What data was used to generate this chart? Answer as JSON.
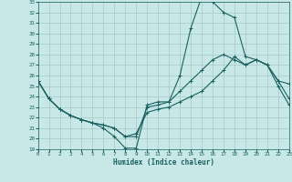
{
  "xlabel": "Humidex (Indice chaleur)",
  "background_color": "#c8e8e8",
  "grid_color": "#a8c8c8",
  "line_color": "#1a6060",
  "xlim": [
    0,
    23
  ],
  "ylim": [
    19,
    33
  ],
  "xticks": [
    0,
    1,
    2,
    3,
    4,
    5,
    6,
    7,
    8,
    9,
    10,
    11,
    12,
    13,
    14,
    15,
    16,
    17,
    18,
    19,
    20,
    21,
    22,
    23
  ],
  "yticks": [
    19,
    20,
    21,
    22,
    23,
    24,
    25,
    26,
    27,
    28,
    29,
    30,
    31,
    32,
    33
  ],
  "curve1_x": [
    0,
    1,
    2,
    3,
    4,
    5,
    6,
    7,
    8,
    9,
    10,
    11,
    12,
    13,
    14,
    15,
    16,
    17,
    18,
    19,
    20,
    21,
    22,
    23
  ],
  "curve1_y": [
    25.5,
    23.8,
    22.8,
    22.2,
    21.8,
    21.5,
    21.0,
    20.2,
    19.1,
    19.1,
    23.2,
    23.5,
    23.5,
    26.0,
    30.5,
    33.5,
    33.0,
    32.0,
    31.5,
    27.8,
    27.5,
    27.0,
    25.0,
    23.2
  ],
  "curve2_x": [
    0,
    1,
    2,
    3,
    4,
    5,
    6,
    7,
    8,
    9,
    10,
    11,
    12,
    13,
    14,
    15,
    16,
    17,
    18,
    19,
    20,
    21,
    22,
    23
  ],
  "curve2_y": [
    25.5,
    23.8,
    22.8,
    22.2,
    21.8,
    21.5,
    21.3,
    21.0,
    20.2,
    20.2,
    23.0,
    23.2,
    23.5,
    24.5,
    25.5,
    26.5,
    27.5,
    28.0,
    27.5,
    27.0,
    27.5,
    27.0,
    25.5,
    25.2
  ],
  "curve3_x": [
    0,
    1,
    2,
    3,
    4,
    5,
    6,
    7,
    8,
    9,
    10,
    11,
    12,
    13,
    14,
    15,
    16,
    17,
    18,
    19,
    20,
    21,
    22,
    23
  ],
  "curve3_y": [
    25.5,
    23.8,
    22.8,
    22.2,
    21.8,
    21.5,
    21.3,
    21.0,
    20.2,
    20.5,
    22.5,
    22.8,
    23.0,
    23.5,
    24.0,
    24.5,
    25.5,
    26.5,
    27.8,
    27.0,
    27.5,
    27.0,
    25.5,
    23.8
  ]
}
